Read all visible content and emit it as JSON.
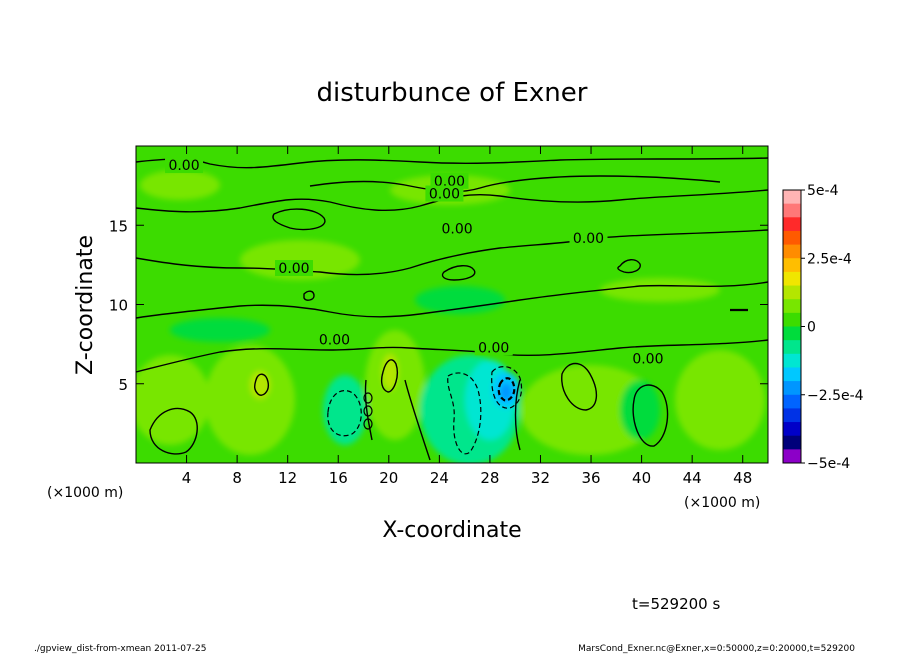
{
  "chart_data": {
    "type": "heatmap",
    "title": "disturbunce of Exner",
    "xlabel": "X-coordinate",
    "ylabel": "Z-coordinate",
    "x_unit_left": "(×1000 m)",
    "x_unit_right": "(×1000 m)",
    "xlim": [
      0,
      50
    ],
    "ylim": [
      0,
      20
    ],
    "xticks": [
      4,
      8,
      12,
      16,
      20,
      24,
      28,
      32,
      36,
      40,
      44,
      48
    ],
    "yticks": [
      5,
      10,
      15
    ],
    "contour_labels": [
      {
        "text": "0.00",
        "x": 3.8,
        "y": 18.8
      },
      {
        "text": "0.00",
        "x": 24.8,
        "y": 17.8
      },
      {
        "text": "0.00",
        "x": 24.4,
        "y": 17.0
      },
      {
        "text": "0.00",
        "x": 25.4,
        "y": 14.8
      },
      {
        "text": "0.00",
        "x": 35.8,
        "y": 14.2
      },
      {
        "text": "0.00",
        "x": 12.5,
        "y": 12.3
      },
      {
        "text": "0.00",
        "x": 15.7,
        "y": 7.8
      },
      {
        "text": "0.00",
        "x": 28.3,
        "y": 7.3
      },
      {
        "text": "0.00",
        "x": 40.5,
        "y": 6.6
      }
    ],
    "colorbar": {
      "min": -0.0005,
      "max": 0.0005,
      "tick_labels": [
        "5e-4",
        "2.5e-4",
        "0",
        "−2.5e-4",
        "−5e-4"
      ],
      "colors": [
        "#ffb4b4",
        "#ff7878",
        "#ff2a2a",
        "#ff5a00",
        "#ff8c00",
        "#ffbe00",
        "#f0e600",
        "#b4e600",
        "#78e600",
        "#3cdc00",
        "#00dc3c",
        "#00e68c",
        "#00e6d2",
        "#00c8ff",
        "#0096ff",
        "#0064ff",
        "#0032e6",
        "#0000c8",
        "#00007a",
        "#8c00c8"
      ]
    },
    "annotation_time": "t=529200 s",
    "footer_left": "./gpview_dist-from-xmean  2011-07-25",
    "footer_right": "MarsCond_Exner.nc@Exner,x=0:50000,z=0:20000,t=529200"
  }
}
